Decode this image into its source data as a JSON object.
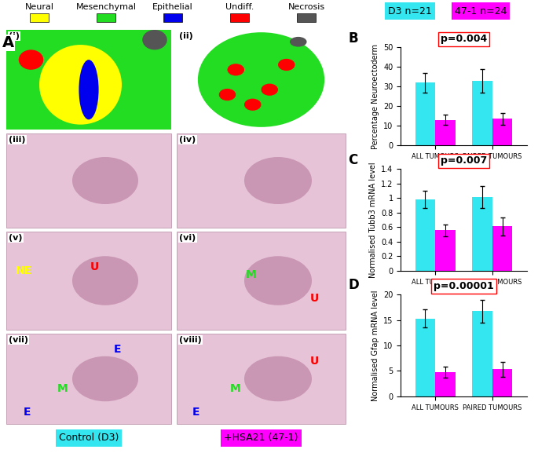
{
  "panel_a": {
    "label": "A",
    "legend": [
      {
        "text": "Neural",
        "color": "#ffff00"
      },
      {
        "text": "Mesenchymal",
        "color": "#22dd22"
      },
      {
        "text": "Epithelial",
        "color": "#0000ee"
      },
      {
        "text": "Undiff.",
        "color": "#ff0000"
      },
      {
        "text": "Necrosis",
        "color": "#555555"
      }
    ],
    "images": [
      {
        "label": "(i)",
        "marks": []
      },
      {
        "label": "(ii)",
        "marks": []
      },
      {
        "label": "(iii)",
        "marks": []
      },
      {
        "label": "(iv)",
        "marks": []
      },
      {
        "label": "(v)",
        "marks": [
          {
            "text": "NE",
            "color": "#ffff00"
          },
          {
            "text": "U",
            "color": "#ff0000"
          }
        ]
      },
      {
        "label": "(vi)",
        "marks": [
          {
            "text": "M",
            "color": "#22dd22"
          },
          {
            "text": "U",
            "color": "#ff0000"
          }
        ]
      },
      {
        "label": "(vii)",
        "marks": [
          {
            "text": "E",
            "color": "#0000ee"
          },
          {
            "text": "M",
            "color": "#22dd22"
          },
          {
            "text": "E",
            "color": "#0000ee"
          }
        ]
      },
      {
        "label": "(viii)",
        "marks": [
          {
            "text": "U",
            "color": "#ff0000"
          },
          {
            "text": "M",
            "color": "#22dd22"
          },
          {
            "text": "E",
            "color": "#0000ee"
          }
        ]
      }
    ],
    "conditions": [
      {
        "text": "Control (D3)",
        "color": "#33e6f0"
      },
      {
        "text": "+HSA21 (47-1)",
        "color": "#ff00ff"
      }
    ]
  },
  "header": [
    {
      "text": "D3 n=21",
      "color": "#33e6f0"
    },
    {
      "text": "47-1 n=24",
      "color": "#ff00ff"
    }
  ],
  "chart_data": [
    {
      "type": "bar",
      "title": "B",
      "annotation": "p=0.004",
      "y_label": "Percentage Neuroectoderm",
      "categories": [
        "ALL TUMOURS",
        "PAIRED TUMOURS"
      ],
      "series": [
        {
          "color": "#33e6f0",
          "values": [
            32,
            33
          ],
          "errors": [
            5,
            6
          ]
        },
        {
          "color": "#ff00ff",
          "values": [
            13,
            13.5
          ],
          "errors": [
            2.5,
            3
          ]
        }
      ],
      "ylim": [
        0,
        50
      ],
      "yticks": [
        0,
        10,
        20,
        30,
        40,
        50
      ]
    },
    {
      "type": "bar",
      "title": "C",
      "annotation": "p=0.007",
      "y_label": "Normalised Tubb3 mRNA level",
      "categories": [
        "ALL TUMOURS",
        "PAIRED TUMOURS"
      ],
      "series": [
        {
          "color": "#33e6f0",
          "values": [
            0.98,
            1.01
          ],
          "errors": [
            0.12,
            0.15
          ]
        },
        {
          "color": "#ff00ff",
          "values": [
            0.56,
            0.61
          ],
          "errors": [
            0.08,
            0.12
          ]
        }
      ],
      "ylim": [
        0,
        1.4
      ],
      "yticks": [
        0,
        0.2,
        0.4,
        0.6,
        0.8,
        1,
        1.2,
        1.4
      ]
    },
    {
      "type": "bar",
      "title": "D",
      "annotation": "p=0.00001",
      "y_label": "Normalised Gfap mRNA level",
      "categories": [
        "ALL TUMOURS",
        "PAIRED TUMOURS"
      ],
      "series": [
        {
          "color": "#33e6f0",
          "values": [
            15.3,
            16.7
          ],
          "errors": [
            1.8,
            2.2
          ]
        },
        {
          "color": "#ff00ff",
          "values": [
            4.8,
            5.3
          ],
          "errors": [
            1.1,
            1.5
          ]
        }
      ],
      "ylim": [
        0,
        20
      ],
      "yticks": [
        0,
        5,
        10,
        15,
        20
      ]
    }
  ]
}
